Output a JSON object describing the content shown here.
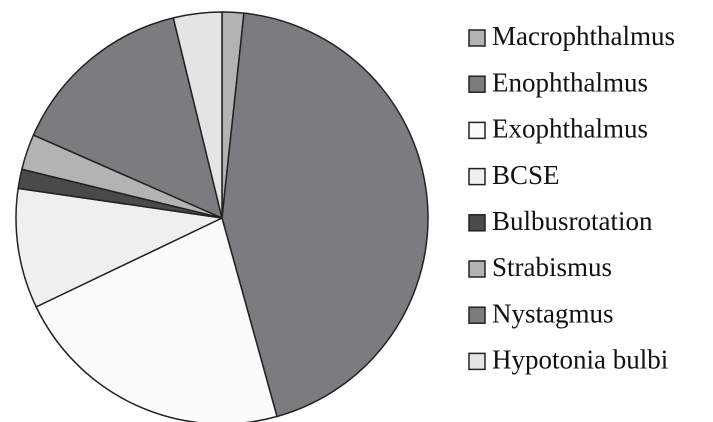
{
  "chart_data": {
    "type": "pie",
    "categories": [
      "Macrophthalmus",
      "Enophthalmus",
      "Exophthalmus",
      "BCSE",
      "Bulbusrotation",
      "Strabismus",
      "Nystagmus",
      "Hypotonia bulbi"
    ],
    "values": [
      1.7,
      44,
      22.2,
      9.4,
      1.5,
      2.8,
      14.6,
      3.8
    ],
    "colors": [
      "#b3b3b3",
      "#7b7c80",
      "#fbfbfb",
      "#efefef",
      "#4a4a4a",
      "#b3b3b3",
      "#7b7c80",
      "#e4e4e4"
    ],
    "legend": "right"
  }
}
